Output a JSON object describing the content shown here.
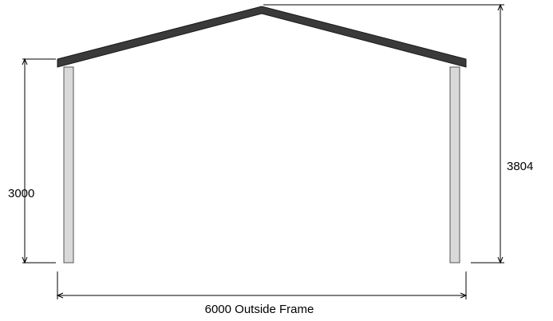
{
  "dimensions": {
    "eave_height": "3000",
    "ridge_height": "3804",
    "width": "6000 Outside Frame"
  },
  "colors": {
    "roof": "#3a3a3a",
    "column_fill": "#d9d9d9",
    "column_stroke": "#555555",
    "dimension_line": "#000000"
  }
}
